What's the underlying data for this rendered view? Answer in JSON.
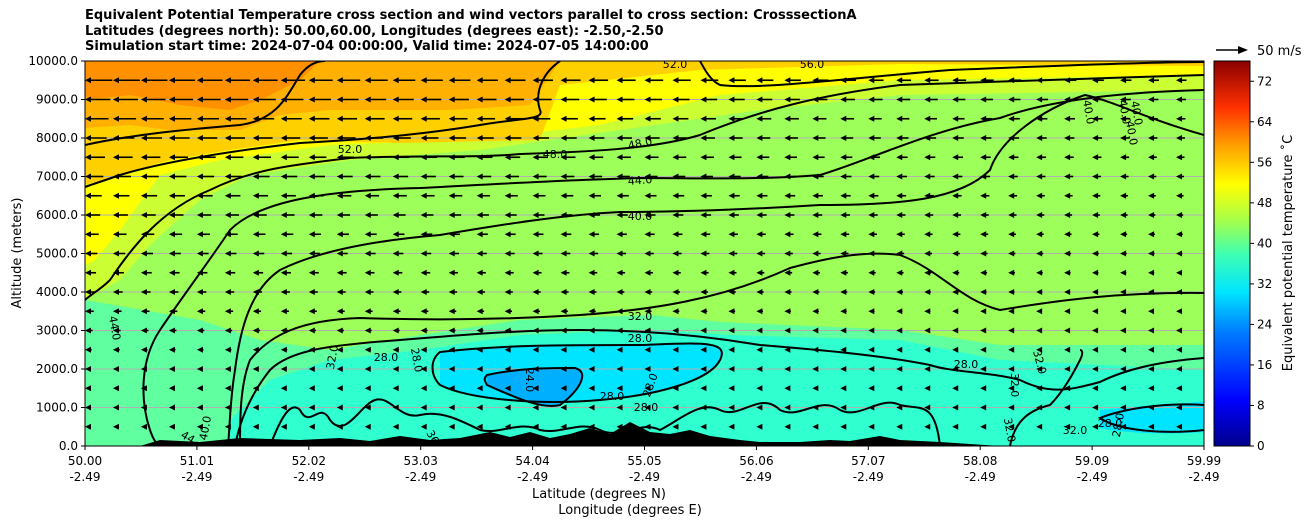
{
  "chart_data": {
    "type": "heatmap",
    "title_lines": [
      "Equivalent Potential Temperature cross section and wind vectors parallel to cross section: CrosssectionA",
      "Latitudes (degrees north): 50.00,60.00, Longitudes (degrees east): -2.50,-2.50",
      "Simulation start time: 2024-07-04 00:00:00, Valid time: 2024-07-05 14:00:00"
    ],
    "ylabel": "Altitude (meters)",
    "xlabel_line1": "Latitude (degrees N)",
    "xlabel_line2": "Longitude (degrees E)",
    "ylim": [
      0,
      10000
    ],
    "y_ticks": [
      "0.0",
      "1000.0",
      "2000.0",
      "3000.0",
      "4000.0",
      "5000.0",
      "6000.0",
      "7000.0",
      "8000.0",
      "9000.0",
      "10000.0"
    ],
    "x_ticks_lat": [
      "50.00",
      "51.01",
      "52.02",
      "53.03",
      "54.04",
      "55.05",
      "56.06",
      "57.07",
      "58.08",
      "59.09",
      "59.99"
    ],
    "x_ticks_lon": [
      "-2.49",
      "-2.49",
      "-2.49",
      "-2.49",
      "-2.49",
      "-2.49",
      "-2.49",
      "-2.49",
      "-2.49",
      "-2.49",
      "-2.49"
    ],
    "grid": "horizontal",
    "colorbar": {
      "label": "Equivalent potential temperature ˚C",
      "ticks": [
        "0",
        "8",
        "16",
        "24",
        "32",
        "40",
        "48",
        "56",
        "64",
        "72"
      ],
      "range": [
        0,
        76
      ]
    },
    "vector_key": {
      "label": "50 m/s"
    },
    "contours": {
      "levels": [
        "24.0",
        "28.0",
        "32.0",
        "36.0",
        "40.0",
        "44.0",
        "48.0",
        "52.0",
        "56.0"
      ],
      "labels": [
        "52.0",
        "48.0",
        "48.0",
        "44.0",
        "40.0",
        "32.0",
        "28.0",
        "28.0",
        "28.0",
        "28.0",
        "24.0",
        "28.0",
        "28.0",
        "32.0",
        "28.0",
        "32.0",
        "28.0",
        "32.0",
        "32.0",
        "28.0",
        "40.0",
        "44.0",
        "44",
        "40.0",
        "36.0",
        "36",
        "32.0",
        "40.0",
        "40.0",
        "40.0",
        "52.0",
        "56.0"
      ]
    }
  }
}
